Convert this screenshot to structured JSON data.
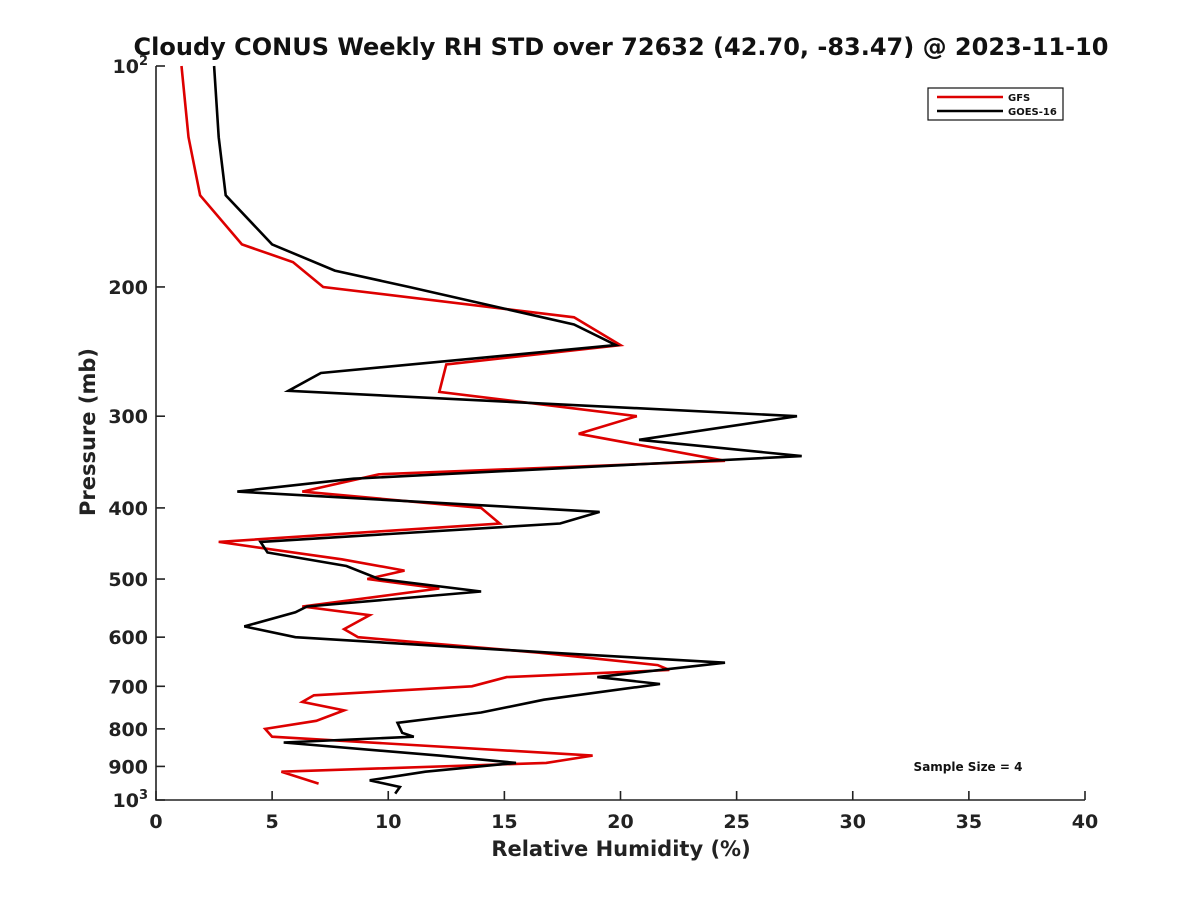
{
  "chart_data": {
    "type": "line",
    "title": "Cloudy CONUS Weekly RH STD over 72632 (42.70, -83.47) @ 2023-11-10",
    "xlabel": "Relative Humidity (%)",
    "ylabel": "Pressure (mb)",
    "xlim": [
      0,
      40
    ],
    "ylim": [
      100,
      1000
    ],
    "y_scale": "log",
    "y_reversed": true,
    "x_ticks": [
      "0",
      "5",
      "10",
      "15",
      "20",
      "25",
      "30",
      "35",
      "40"
    ],
    "y_ticks": [
      {
        "value": 100,
        "base": "10",
        "exp": "2"
      },
      {
        "value": 200,
        "label": "200"
      },
      {
        "value": 300,
        "label": "300"
      },
      {
        "value": 400,
        "label": "400"
      },
      {
        "value": 500,
        "label": "500"
      },
      {
        "value": 600,
        "label": "600"
      },
      {
        "value": 700,
        "label": "700"
      },
      {
        "value": 800,
        "label": "800"
      },
      {
        "value": 900,
        "label": "900"
      },
      {
        "value": 1000,
        "base": "10",
        "exp": "3"
      }
    ],
    "legend_position": "top-right",
    "annotation": "Sample Size = 4",
    "series": [
      {
        "name": "GFS",
        "color": "#dd0000",
        "points": [
          [
            1.1,
            100
          ],
          [
            1.4,
            125
          ],
          [
            1.9,
            150
          ],
          [
            3.7,
            175
          ],
          [
            5.9,
            185
          ],
          [
            7.2,
            200
          ],
          [
            18.0,
            220
          ],
          [
            20.0,
            240
          ],
          [
            12.5,
            255
          ],
          [
            12.2,
            278
          ],
          [
            20.7,
            300
          ],
          [
            18.2,
            317
          ],
          [
            24.5,
            345
          ],
          [
            9.6,
            360
          ],
          [
            6.3,
            380
          ],
          [
            14.0,
            400
          ],
          [
            14.8,
            420
          ],
          [
            2.7,
            445
          ],
          [
            8.0,
            470
          ],
          [
            10.7,
            487
          ],
          [
            9.1,
            500
          ],
          [
            12.2,
            515
          ],
          [
            6.3,
            545
          ],
          [
            9.2,
            560
          ],
          [
            8.1,
            585
          ],
          [
            8.7,
            600
          ],
          [
            16.5,
            630
          ],
          [
            21.6,
            655
          ],
          [
            22.1,
            665
          ],
          [
            15.1,
            680
          ],
          [
            13.6,
            700
          ],
          [
            6.8,
            720
          ],
          [
            6.3,
            735
          ],
          [
            8.1,
            755
          ],
          [
            6.9,
            780
          ],
          [
            4.7,
            800
          ],
          [
            5.0,
            820
          ],
          [
            18.8,
            870
          ],
          [
            16.8,
            890
          ],
          [
            5.4,
            915
          ],
          [
            7.0,
            950
          ]
        ]
      },
      {
        "name": "GOES-16",
        "color": "#000000",
        "points": [
          [
            2.5,
            100
          ],
          [
            2.7,
            125
          ],
          [
            3.0,
            150
          ],
          [
            5.0,
            175
          ],
          [
            7.7,
            190
          ],
          [
            10.9,
            200
          ],
          [
            18.0,
            225
          ],
          [
            19.8,
            240
          ],
          [
            7.1,
            262
          ],
          [
            5.7,
            277
          ],
          [
            27.6,
            300
          ],
          [
            20.8,
            323
          ],
          [
            27.8,
            340
          ],
          [
            8.5,
            365
          ],
          [
            3.5,
            380
          ],
          [
            19.1,
            405
          ],
          [
            17.4,
            420
          ],
          [
            4.5,
            445
          ],
          [
            4.8,
            460
          ],
          [
            8.2,
            480
          ],
          [
            9.6,
            500
          ],
          [
            14.0,
            520
          ],
          [
            6.5,
            545
          ],
          [
            6.0,
            555
          ],
          [
            3.8,
            580
          ],
          [
            6.0,
            600
          ],
          [
            17.0,
            630
          ],
          [
            24.5,
            650
          ],
          [
            19.0,
            680
          ],
          [
            21.7,
            695
          ],
          [
            16.7,
            730
          ],
          [
            14.0,
            760
          ],
          [
            10.4,
            785
          ],
          [
            10.6,
            810
          ],
          [
            11.1,
            820
          ],
          [
            5.5,
            835
          ],
          [
            12.2,
            870
          ],
          [
            15.5,
            890
          ],
          [
            11.6,
            915
          ],
          [
            9.2,
            940
          ],
          [
            10.5,
            960
          ],
          [
            10.3,
            980
          ]
        ]
      }
    ]
  }
}
